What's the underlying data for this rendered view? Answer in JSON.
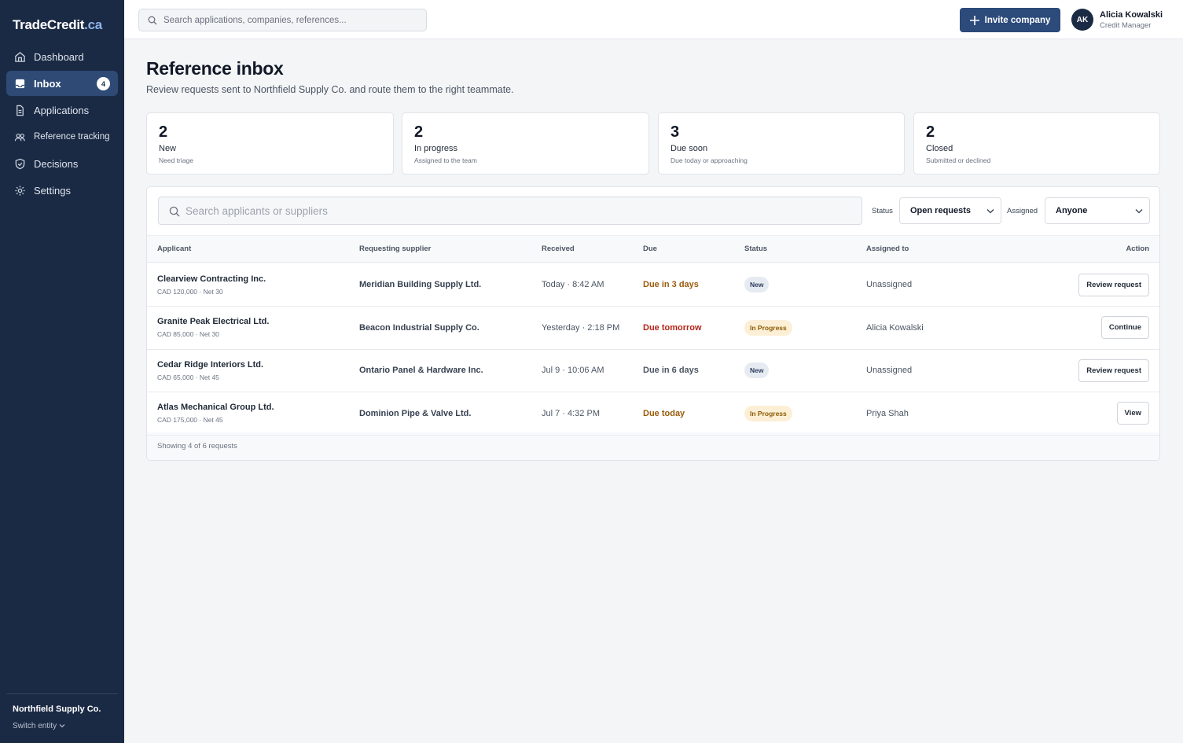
{
  "brand": {
    "name": "TradeCredit",
    "suffix": ".ca"
  },
  "nav": [
    {
      "label": "Dashboard"
    },
    {
      "label": "Inbox",
      "badge": 4
    },
    {
      "label": "Applications"
    },
    {
      "label": "Reference tracking"
    },
    {
      "label": "Decisions"
    },
    {
      "label": "Settings"
    }
  ],
  "entity": {
    "name": "Northfield Supply Co.",
    "switch": "Switch entity"
  },
  "topbar": {
    "search_placeholder": "Search applications, companies, references...",
    "invite": "Invite company",
    "user": {
      "initials": "AK",
      "name": "Alicia Kowalski",
      "role": "Credit Manager"
    }
  },
  "header": {
    "title": "Reference inbox",
    "subtitle": "Review requests sent to Northfield Supply Co. and route them to the right teammate."
  },
  "stats": [
    {
      "value": 2,
      "label": "New",
      "note": "Need triage"
    },
    {
      "value": 2,
      "label": "In progress",
      "note": "Assigned to the team"
    },
    {
      "value": 3,
      "label": "Due soon",
      "note": "Due today or approaching"
    },
    {
      "value": 2,
      "label": "Closed",
      "note": "Submitted or declined"
    }
  ],
  "filters": {
    "search_placeholder": "Search applicants or suppliers",
    "status_label": "Status",
    "status_value": "Open requests",
    "assigned_label": "Assigned",
    "assigned_value": "Anyone"
  },
  "table": {
    "columns": [
      "Applicant",
      "Requesting supplier",
      "Received",
      "Due",
      "Status",
      "Assigned to",
      "Action"
    ],
    "rows": [
      {
        "applicant": "Clearview Contracting Inc.",
        "terms": "CAD 120,000 · Net 30",
        "supplier": "Meridian Building Supply Ltd.",
        "received": "Today · 8:42 AM",
        "due": "Due in 3 days",
        "due_color": "#9a5b0b",
        "status": "New",
        "status_color": "#2c3e5c",
        "status_bg": "#e6ebf2",
        "assigned": "Unassigned",
        "action": "Review request"
      },
      {
        "applicant": "Granite Peak Electrical Ltd.",
        "terms": "CAD 85,000 · Net 30",
        "supplier": "Beacon Industrial Supply Co.",
        "received": "Yesterday · 2:18 PM",
        "due": "Due tomorrow",
        "due_color": "#b42318",
        "status": "In Progress",
        "status_color": "#8a5a00",
        "status_bg": "#fcefd6",
        "assigned": "Alicia Kowalski",
        "action": "Continue"
      },
      {
        "applicant": "Cedar Ridge Interiors Ltd.",
        "terms": "CAD 65,000 · Net 45",
        "supplier": "Ontario Panel & Hardware Inc.",
        "received": "Jul 9 · 10:06 AM",
        "due": "Due in 6 days",
        "due_color": "#4b5563",
        "status": "New",
        "status_color": "#2c3e5c",
        "status_bg": "#e6ebf2",
        "assigned": "Unassigned",
        "action": "Review request"
      },
      {
        "applicant": "Atlas Mechanical Group Ltd.",
        "terms": "CAD 175,000 · Net 45",
        "supplier": "Dominion Pipe & Valve Ltd.",
        "received": "Jul 7 · 4:32 PM",
        "due": "Due today",
        "due_color": "#9a5b0b",
        "status": "In Progress",
        "status_color": "#8a5a00",
        "status_bg": "#fcefd6",
        "assigned": "Priya Shah",
        "action": "View"
      }
    ],
    "footer": "Showing 4 of 6 requests"
  }
}
